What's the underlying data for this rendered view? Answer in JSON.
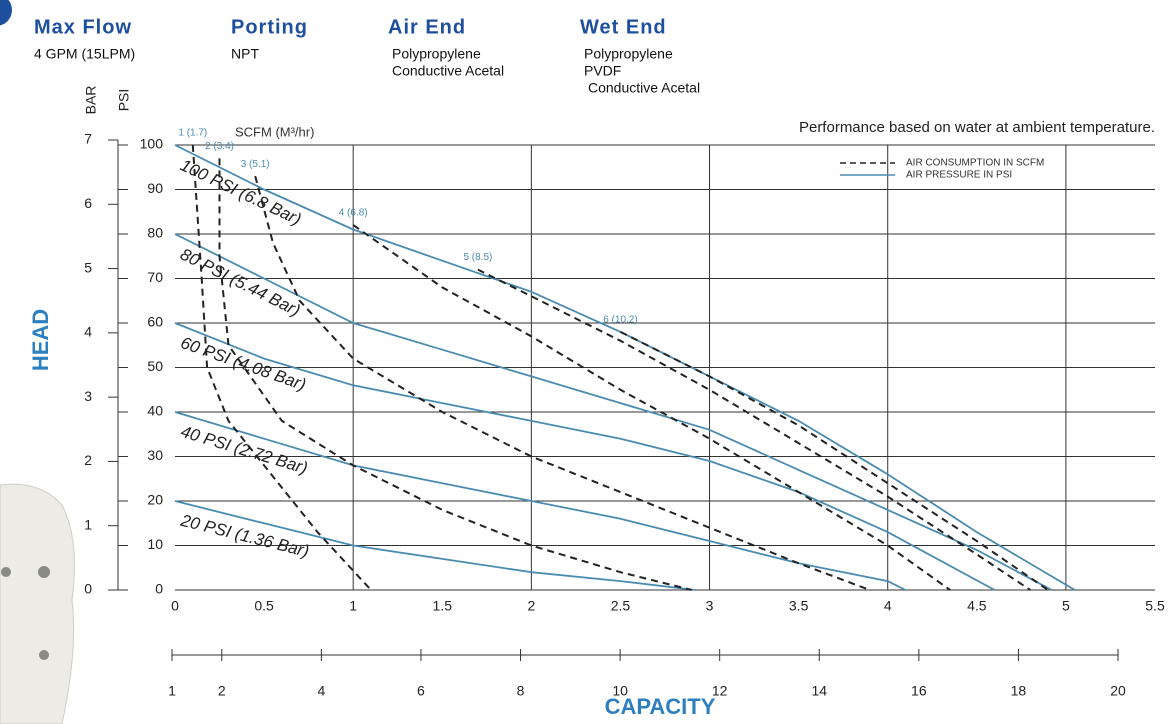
{
  "header": {
    "specs": [
      {
        "title": "Max Flow",
        "lines": [
          "4 GPM (15LPM)"
        ]
      },
      {
        "title": "Porting",
        "lines": [
          "NPT"
        ]
      },
      {
        "title": "Air End",
        "lines": [
          "Polypropylene",
          "Conductive Acetal"
        ]
      },
      {
        "title": "Wet End",
        "lines": [
          "Polypropylene",
          "PVDF",
          "Conductive Acetal"
        ]
      }
    ]
  },
  "chart_data": {
    "type": "line",
    "note": "Performance based on water at ambient temperature.",
    "scfm_label": "SCFM (M³/hr)",
    "y_label": "HEAD",
    "x_label": "CAPACITY",
    "y_unit": "PSI",
    "y2_unit": "BAR",
    "xlim": [
      0,
      5.5
    ],
    "xticks": [
      0,
      0.5,
      1,
      1.5,
      2,
      2.5,
      3,
      3.5,
      4,
      4.5,
      5,
      5.5
    ],
    "ylim": [
      0,
      100
    ],
    "yticks": [
      0,
      10,
      20,
      30,
      40,
      50,
      60,
      70,
      80,
      90,
      100
    ],
    "y2lim": [
      0,
      7
    ],
    "y2ticks": [
      0,
      1,
      2,
      3,
      4,
      5,
      6,
      7
    ],
    "x2lim": [
      1,
      20
    ],
    "x2ticks": [
      1,
      2,
      4,
      6,
      8,
      10,
      12,
      14,
      16,
      18,
      20
    ],
    "grid": true,
    "legend_position": "top-right",
    "legend": [
      {
        "label": "AIR CONSUMPTION IN SCFM",
        "style": "dashed",
        "color": "#222222"
      },
      {
        "label": "AIR PRESSURE IN PSI",
        "style": "solid",
        "color": "#4a8bb0"
      }
    ],
    "series": [
      {
        "name": "100 PSI (6.8 Bar)",
        "style": "solid",
        "color": "#4a8bb0",
        "x": [
          0,
          0.5,
          1,
          1.5,
          2,
          2.5,
          3,
          3.5,
          4,
          4.5,
          5.05
        ],
        "values": [
          100,
          90,
          81,
          74,
          67,
          58,
          48,
          38,
          26,
          13,
          0
        ]
      },
      {
        "name": "80 PSI (5.44 Bar)",
        "style": "solid",
        "color": "#4a8bb0",
        "x": [
          0,
          0.5,
          1,
          1.5,
          2,
          2.5,
          3,
          3.5,
          4,
          4.5,
          4.92
        ],
        "values": [
          80,
          70,
          60,
          54,
          48,
          42,
          36,
          27,
          18,
          9,
          0
        ]
      },
      {
        "name": "60 PSI (4.08 Bar)",
        "style": "solid",
        "color": "#4a8bb0",
        "x": [
          0,
          0.5,
          1,
          1.5,
          2,
          2.5,
          3,
          3.5,
          4,
          4.6
        ],
        "values": [
          60,
          52,
          46,
          42,
          38,
          34,
          29,
          22,
          13,
          0
        ]
      },
      {
        "name": "40 PSI (2.72 Bar)",
        "style": "solid",
        "color": "#4a8bb0",
        "x": [
          0,
          0.5,
          1,
          1.5,
          2,
          2.5,
          3,
          3.5,
          4,
          4.1
        ],
        "values": [
          40,
          34,
          28,
          24,
          20,
          16,
          11,
          6,
          2,
          0
        ]
      },
      {
        "name": "20 PSI (1.36 Bar)",
        "style": "solid",
        "color": "#4a8bb0",
        "x": [
          0,
          0.5,
          1,
          1.5,
          2,
          2.5,
          2.92
        ],
        "values": [
          20,
          15,
          10,
          7,
          4,
          2,
          0
        ]
      },
      {
        "name": "1 (1.7)",
        "style": "dashed",
        "color": "#222222",
        "x": [
          0.1,
          0.15,
          0.18,
          0.3,
          0.5,
          0.8,
          1.1
        ],
        "values": [
          100,
          70,
          50,
          38,
          28,
          13,
          0
        ]
      },
      {
        "name": "2 (3.4)",
        "style": "dashed",
        "color": "#222222",
        "x": [
          0.25,
          0.25,
          0.3,
          0.6,
          1,
          1.5,
          2,
          2.5,
          2.9
        ],
        "values": [
          97,
          75,
          55,
          38,
          28,
          18,
          10,
          4,
          0
        ]
      },
      {
        "name": "3 (5.1)",
        "style": "dashed",
        "color": "#222222",
        "x": [
          0.45,
          0.55,
          0.7,
          1,
          1.5,
          2,
          2.5,
          3,
          3.5,
          3.9
        ],
        "values": [
          93,
          78,
          65,
          52,
          40,
          30,
          22,
          14,
          6,
          0
        ]
      },
      {
        "name": "4 (6.8)",
        "style": "dashed",
        "color": "#222222",
        "x": [
          1,
          1.5,
          2,
          2.5,
          3,
          3.5,
          4,
          4.35
        ],
        "values": [
          82,
          68,
          57,
          45,
          34,
          22,
          10,
          0
        ]
      },
      {
        "name": "5 (8.5)",
        "style": "dashed",
        "color": "#222222",
        "x": [
          1.7,
          2,
          2.5,
          3,
          3.5,
          4,
          4.5,
          4.8
        ],
        "values": [
          72,
          66,
          56,
          45,
          33,
          21,
          8,
          0
        ]
      },
      {
        "name": "6 (10.2)",
        "style": "dashed",
        "color": "#222222",
        "x": [
          2.5,
          3,
          3.5,
          4,
          4.5,
          4.9
        ],
        "values": [
          58,
          48,
          37,
          24,
          11,
          0
        ]
      }
    ]
  }
}
